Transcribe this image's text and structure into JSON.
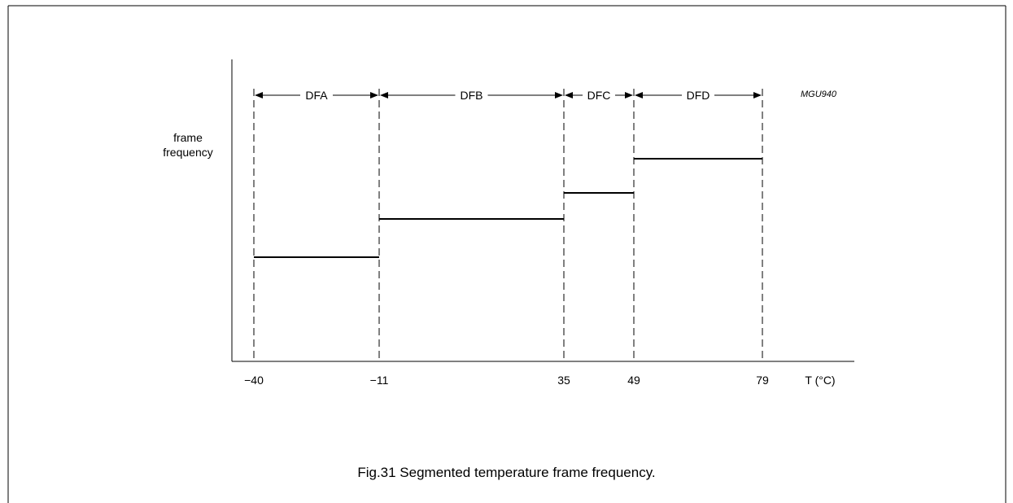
{
  "caption": "Fig.31  Segmented temperature frame frequency.",
  "figure_code": "MGU940",
  "chart_data": {
    "type": "line",
    "ylabel": [
      "frame",
      "frequency"
    ],
    "xlabel": "T (°C)",
    "x_ticks": [
      -40,
      -11,
      35,
      49,
      79
    ],
    "x_tick_labels": [
      "−40",
      "−11",
      "35",
      "49",
      "79"
    ],
    "segments": [
      {
        "name": "DFA",
        "x_start": -40,
        "x_end": -11,
        "level": 1
      },
      {
        "name": "DFB",
        "x_start": -11,
        "x_end": 35,
        "level": 2
      },
      {
        "name": "DFC",
        "x_start": 35,
        "x_end": 49,
        "level": 3
      },
      {
        "name": "DFD",
        "x_start": 49,
        "x_end": 79,
        "level": 4
      }
    ],
    "y_axis_values_shown": false,
    "grid": false
  }
}
